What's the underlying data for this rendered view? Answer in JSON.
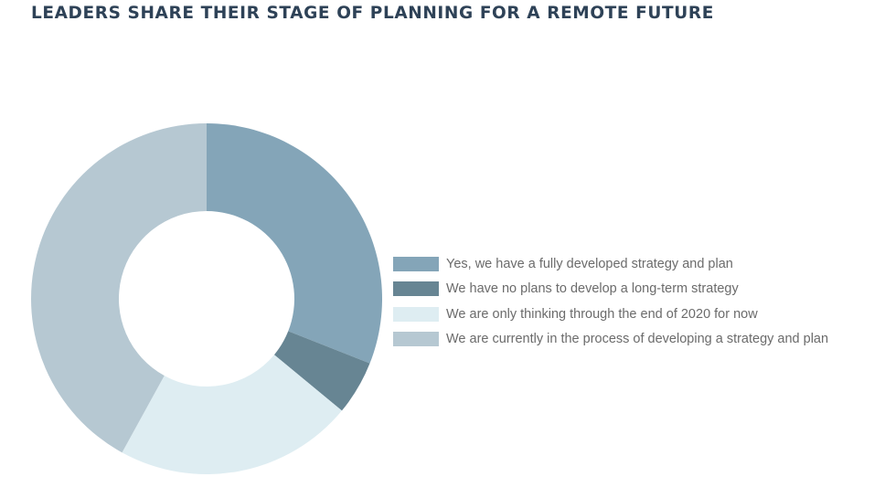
{
  "chart_data": {
    "type": "pie",
    "title": "LEADERS SHARE THEIR STAGE OF PLANNING FOR A REMOTE FUTURE",
    "donut": true,
    "legend_position": "right",
    "categories": [
      "Yes, we have a fully developed strategy and plan",
      "We have no plans to develop a long-term strategy",
      "We are only thinking through the end of 2020 for now",
      "We are currently in the process of developing a strategy and plan"
    ],
    "values": [
      31,
      5,
      22,
      42
    ],
    "colors": [
      "#84a5b8",
      "#678593",
      "#deedf2",
      "#b6c8d2"
    ]
  }
}
